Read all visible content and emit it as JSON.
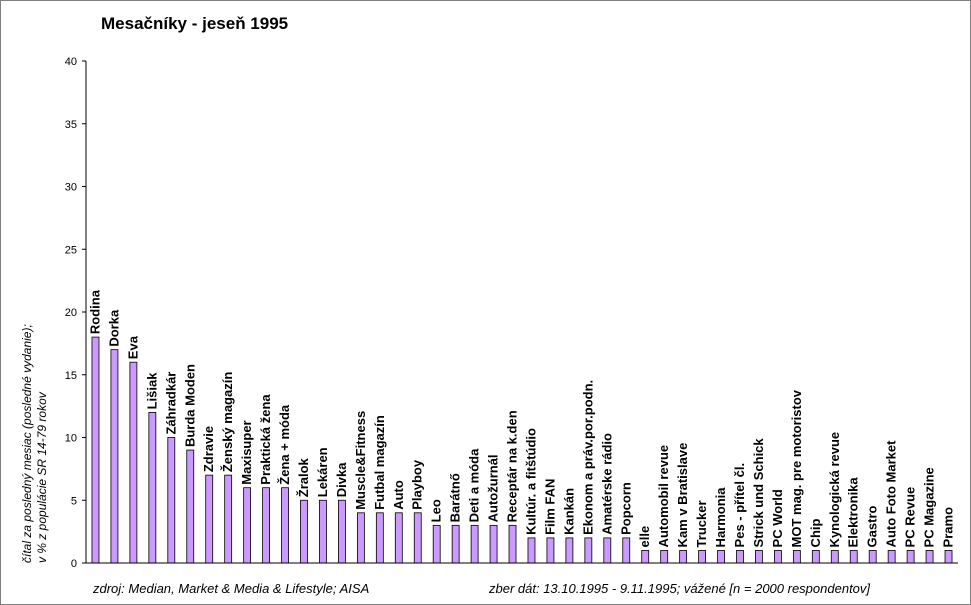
{
  "chart_data": {
    "type": "bar",
    "title": "Mesačníky - jeseň 1995",
    "ylabel_lines": [
      "čítal za posledný mesiac (posledné vydanie);",
      "v % z populácie SR 14-79 rokov"
    ],
    "ylim": [
      0,
      40
    ],
    "yticks": [
      "0",
      "5",
      "10",
      "15",
      "20",
      "25",
      "30",
      "35",
      "40"
    ],
    "grid": false,
    "legend": "none",
    "bar_color": "#cc99ff",
    "categories": [
      "Rodina",
      "Dorka",
      "Eva",
      "Lišiak",
      "Záhradkár",
      "Burda Moden",
      "Zdravie",
      "Ženský magazín",
      "Maxisuper",
      "Praktická žena",
      "Žena + móda",
      "Žralok",
      "Lekáren",
      "Divka",
      "Muscle&Fitness",
      "Futbal magazín",
      "Auto",
      "Playboy",
      "Leo",
      "Barátnő",
      "Deti a móda",
      "Autožurnál",
      "Receptár na k.den",
      "Kultúr. a fitštúdio",
      "Film FAN",
      "Kankán",
      "Ekonom a práv.por.podn.",
      "Amatérske rádio",
      "Popcorn",
      "elle",
      "Automobil revue",
      "Kam v Bratislave",
      "Trucker",
      "Harmonia",
      "Pes - přítel čl.",
      "Strick und Schick",
      "PC World",
      "MOT mag. pre motoristov",
      "Chip",
      "Kynologická revue",
      "Elektronika",
      "Gastro",
      "Auto Foto Market",
      "PC Revue",
      "PC Magazine",
      "Pramo"
    ],
    "values": [
      18,
      17,
      16,
      12,
      10,
      9,
      7,
      7,
      6,
      6,
      6,
      5,
      5,
      5,
      4,
      4,
      4,
      4,
      3,
      3,
      3,
      3,
      3,
      2,
      2,
      2,
      2,
      2,
      2,
      1,
      1,
      1,
      1,
      1,
      1,
      1,
      1,
      1,
      1,
      1,
      1,
      1,
      1,
      1,
      1,
      1
    ]
  },
  "footer": {
    "source": "zdroj: Median, Market & Media & Lifestyle; AISA",
    "note": "zber dát: 13.10.1995 - 9.11.1995; vážené [n = 2000 respondentov]"
  }
}
